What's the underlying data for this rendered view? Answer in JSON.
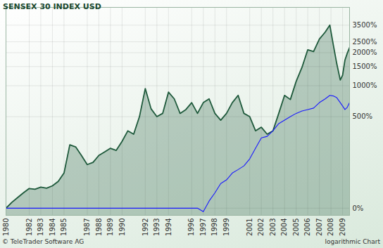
{
  "chart_data": {
    "type": "line",
    "title": "SENSEX 30 INDEX USD",
    "annotations": [
      "© TeleTrader Software AG",
      "logarithmic Chart"
    ],
    "log": "y",
    "grid": true,
    "x": [
      1980,
      1980.5,
      1981,
      1981.5,
      1982,
      1982.5,
      1983,
      1983.5,
      1984,
      1984.5,
      1985,
      1985.5,
      1986,
      1986.5,
      1987,
      1987.5,
      1988,
      1988.5,
      1989,
      1989.5,
      1990,
      1990.5,
      1991,
      1991.5,
      1992,
      1992.5,
      1993,
      1993.5,
      1994,
      1994.5,
      1995,
      1995.5,
      1996,
      1996.5,
      1997,
      1997.5,
      1998,
      1998.5,
      1999,
      1999.5,
      2000,
      2000.5,
      2001,
      2001.5,
      2002,
      2002.5,
      2003,
      2003.5,
      2004,
      2004.5,
      2005,
      2005.5,
      2006,
      2006.5,
      2007,
      2007.5,
      2007.9,
      2008.2,
      2008.5,
      2008.8,
      2009,
      2009.2,
      2009.4,
      2009.6
    ],
    "series": [
      {
        "type": "area",
        "color": "#1f5a3c",
        "values": [
          0,
          12,
          23,
          35,
          47,
          45,
          51,
          48,
          55,
          69,
          99,
          246,
          232,
          181,
          135,
          145,
          181,
          201,
          223,
          210,
          270,
          355,
          326,
          500,
          940,
          600,
          500,
          540,
          870,
          750,
          540,
          590,
          690,
          540,
          690,
          750,
          540,
          460,
          540,
          690,
          810,
          540,
          500,
          355,
          388,
          326,
          355,
          540,
          810,
          740,
          1097,
          1475,
          2125,
          2050,
          2640,
          3040,
          3500,
          2350,
          1590,
          1130,
          1250,
          1710,
          1975,
          2220
        ]
      },
      {
        "type": "line",
        "color": "#1a1aff",
        "values": [
          0,
          0,
          0,
          0,
          0,
          0,
          0,
          0,
          0,
          0,
          0,
          0,
          0,
          0,
          0,
          0,
          0,
          0,
          0,
          0,
          0,
          0,
          0,
          0,
          0,
          0,
          0,
          0,
          0,
          0,
          0,
          0,
          0,
          0,
          -7,
          15,
          35,
          62,
          74,
          99,
          113,
          129,
          163,
          223,
          296,
          308,
          355,
          424,
          460,
          500,
          540,
          570,
          590,
          610,
          690,
          750,
          810,
          800,
          770,
          690,
          640,
          590,
          620,
          690
        ]
      }
    ],
    "xlim": [
      1980,
      2009.6
    ],
    "xticks": [
      1980,
      1982,
      1983,
      1984,
      1985,
      1987,
      1988,
      1989,
      1990,
      1992,
      1993,
      1994,
      1996,
      1997,
      1998,
      1999,
      2001,
      2002,
      2003,
      2004,
      2005,
      2006,
      2007,
      2008,
      2009
    ],
    "ylim": [
      -15,
      5000
    ],
    "yticks": [
      {
        "value": 0,
        "label": "0%"
      },
      {
        "value": 500,
        "label": "500%"
      },
      {
        "value": 1000,
        "label": "1000%"
      },
      {
        "value": 1500,
        "label": "1500%"
      },
      {
        "value": 2000,
        "label": "2000%"
      },
      {
        "value": 2500,
        "label": "2500%"
      },
      {
        "value": 3500,
        "label": "3500%"
      }
    ]
  }
}
